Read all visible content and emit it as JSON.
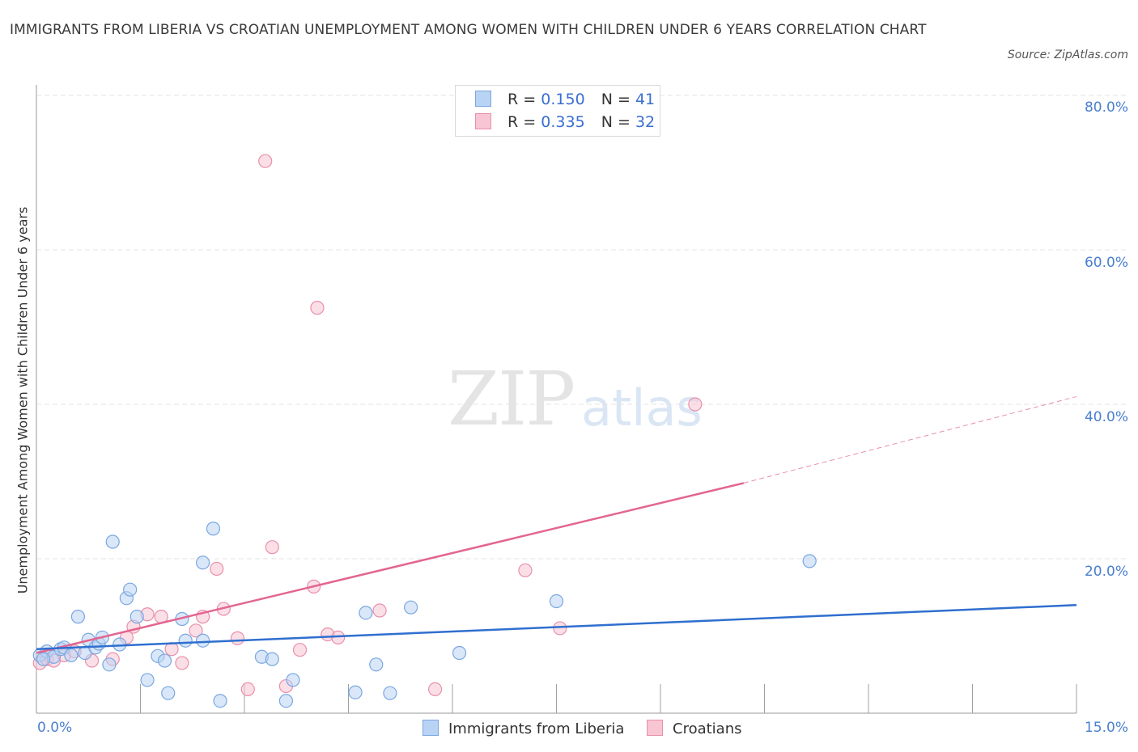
{
  "title": "IMMIGRANTS FROM LIBERIA VS CROATIAN UNEMPLOYMENT AMONG WOMEN WITH CHILDREN UNDER 6 YEARS CORRELATION CHART",
  "source": "Source: ZipAtlas.com",
  "watermark": {
    "zip": "ZIP",
    "atlas": "atlas"
  },
  "colors": {
    "blue_fill": "#b9d3f4",
    "blue_stroke": "#7aa7e0",
    "blue_line": "#2f6fcf",
    "pink_fill": "#f8c5d4",
    "pink_stroke": "#e98fab",
    "pink_line": "#e36590",
    "axis_text": "#4a7fcf",
    "grid": "#e3e3e3"
  },
  "legend": {
    "series": [
      {
        "r_label": "R =",
        "r_value": "0.150",
        "n_label": "N =",
        "n_value": "41"
      },
      {
        "r_label": "R =",
        "r_value": "0.335",
        "n_label": "N =",
        "n_value": "32"
      }
    ]
  },
  "bottom_legend": {
    "blue": "Immigrants from Liberia",
    "pink": "Croatians"
  },
  "chart_data": {
    "type": "scatter",
    "title": "IMMIGRANTS FROM LIBERIA VS CROATIAN UNEMPLOYMENT AMONG WOMEN WITH CHILDREN UNDER 6 YEARS CORRELATION CHART",
    "xlabel": "",
    "ylabel": "Unemployment Among Women with Children Under 6 years",
    "xlim": [
      0,
      15
    ],
    "ylim": [
      0,
      80
    ],
    "x_tick_labels": [
      "0.0%",
      "15.0%"
    ],
    "y_tick_labels": [
      "20.0%",
      "40.0%",
      "60.0%",
      "80.0%"
    ],
    "y_gridlines": [
      20,
      40,
      60,
      80
    ],
    "series": [
      {
        "name": "Immigrants from Liberia",
        "color": "blue",
        "R": 0.15,
        "N": 41,
        "trend": {
          "x0": 0,
          "y0": 8.3,
          "x1": 15,
          "y1": 14.0
        },
        "points": [
          [
            0.05,
            7.5
          ],
          [
            0.15,
            8.0
          ],
          [
            0.25,
            7.3
          ],
          [
            0.35,
            8.3
          ],
          [
            0.4,
            8.5
          ],
          [
            0.5,
            7.5
          ],
          [
            0.6,
            12.5
          ],
          [
            0.7,
            7.8
          ],
          [
            0.75,
            9.5
          ],
          [
            0.85,
            8.5
          ],
          [
            0.9,
            9.0
          ],
          [
            0.95,
            9.8
          ],
          [
            1.05,
            6.3
          ],
          [
            1.1,
            22.2
          ],
          [
            1.2,
            8.9
          ],
          [
            1.3,
            14.9
          ],
          [
            1.35,
            16.0
          ],
          [
            1.45,
            12.5
          ],
          [
            1.6,
            4.3
          ],
          [
            1.75,
            7.4
          ],
          [
            1.85,
            6.8
          ],
          [
            1.9,
            2.6
          ],
          [
            2.1,
            12.2
          ],
          [
            2.15,
            9.4
          ],
          [
            2.4,
            9.4
          ],
          [
            2.4,
            19.5
          ],
          [
            2.55,
            23.9
          ],
          [
            2.65,
            1.6
          ],
          [
            3.25,
            7.3
          ],
          [
            3.4,
            7.0
          ],
          [
            3.6,
            1.6
          ],
          [
            3.7,
            4.3
          ],
          [
            4.6,
            2.7
          ],
          [
            4.75,
            13.0
          ],
          [
            4.9,
            6.3
          ],
          [
            5.1,
            2.6
          ],
          [
            5.4,
            13.7
          ],
          [
            6.1,
            7.8
          ],
          [
            7.5,
            14.5
          ],
          [
            11.15,
            19.7
          ],
          [
            0.1,
            7.0
          ]
        ]
      },
      {
        "name": "Croatians",
        "color": "pink",
        "R": 0.335,
        "N": 32,
        "trend": {
          "x0": 0,
          "y0": 7.8,
          "x1": 10.2,
          "y1": 29.8
        },
        "trend_extension": {
          "x0": 10.2,
          "y0": 29.8,
          "x1": 15,
          "y1": 41.0
        },
        "points": [
          [
            0.05,
            6.5
          ],
          [
            0.15,
            7.0
          ],
          [
            0.25,
            6.8
          ],
          [
            0.4,
            7.5
          ],
          [
            0.55,
            8.0
          ],
          [
            0.8,
            6.8
          ],
          [
            1.1,
            7.0
          ],
          [
            1.3,
            9.8
          ],
          [
            1.4,
            11.2
          ],
          [
            1.6,
            12.8
          ],
          [
            1.8,
            12.5
          ],
          [
            1.95,
            8.3
          ],
          [
            2.1,
            6.5
          ],
          [
            2.3,
            10.7
          ],
          [
            2.4,
            12.5
          ],
          [
            2.6,
            18.7
          ],
          [
            2.7,
            13.5
          ],
          [
            2.9,
            9.7
          ],
          [
            3.05,
            3.1
          ],
          [
            3.3,
            71.5
          ],
          [
            3.4,
            21.5
          ],
          [
            3.6,
            3.5
          ],
          [
            3.8,
            8.2
          ],
          [
            4.0,
            16.4
          ],
          [
            4.05,
            52.5
          ],
          [
            4.2,
            10.2
          ],
          [
            4.35,
            9.8
          ],
          [
            4.95,
            13.3
          ],
          [
            5.75,
            3.1
          ],
          [
            7.05,
            18.5
          ],
          [
            7.55,
            11.0
          ],
          [
            9.5,
            40.0
          ]
        ]
      }
    ]
  }
}
